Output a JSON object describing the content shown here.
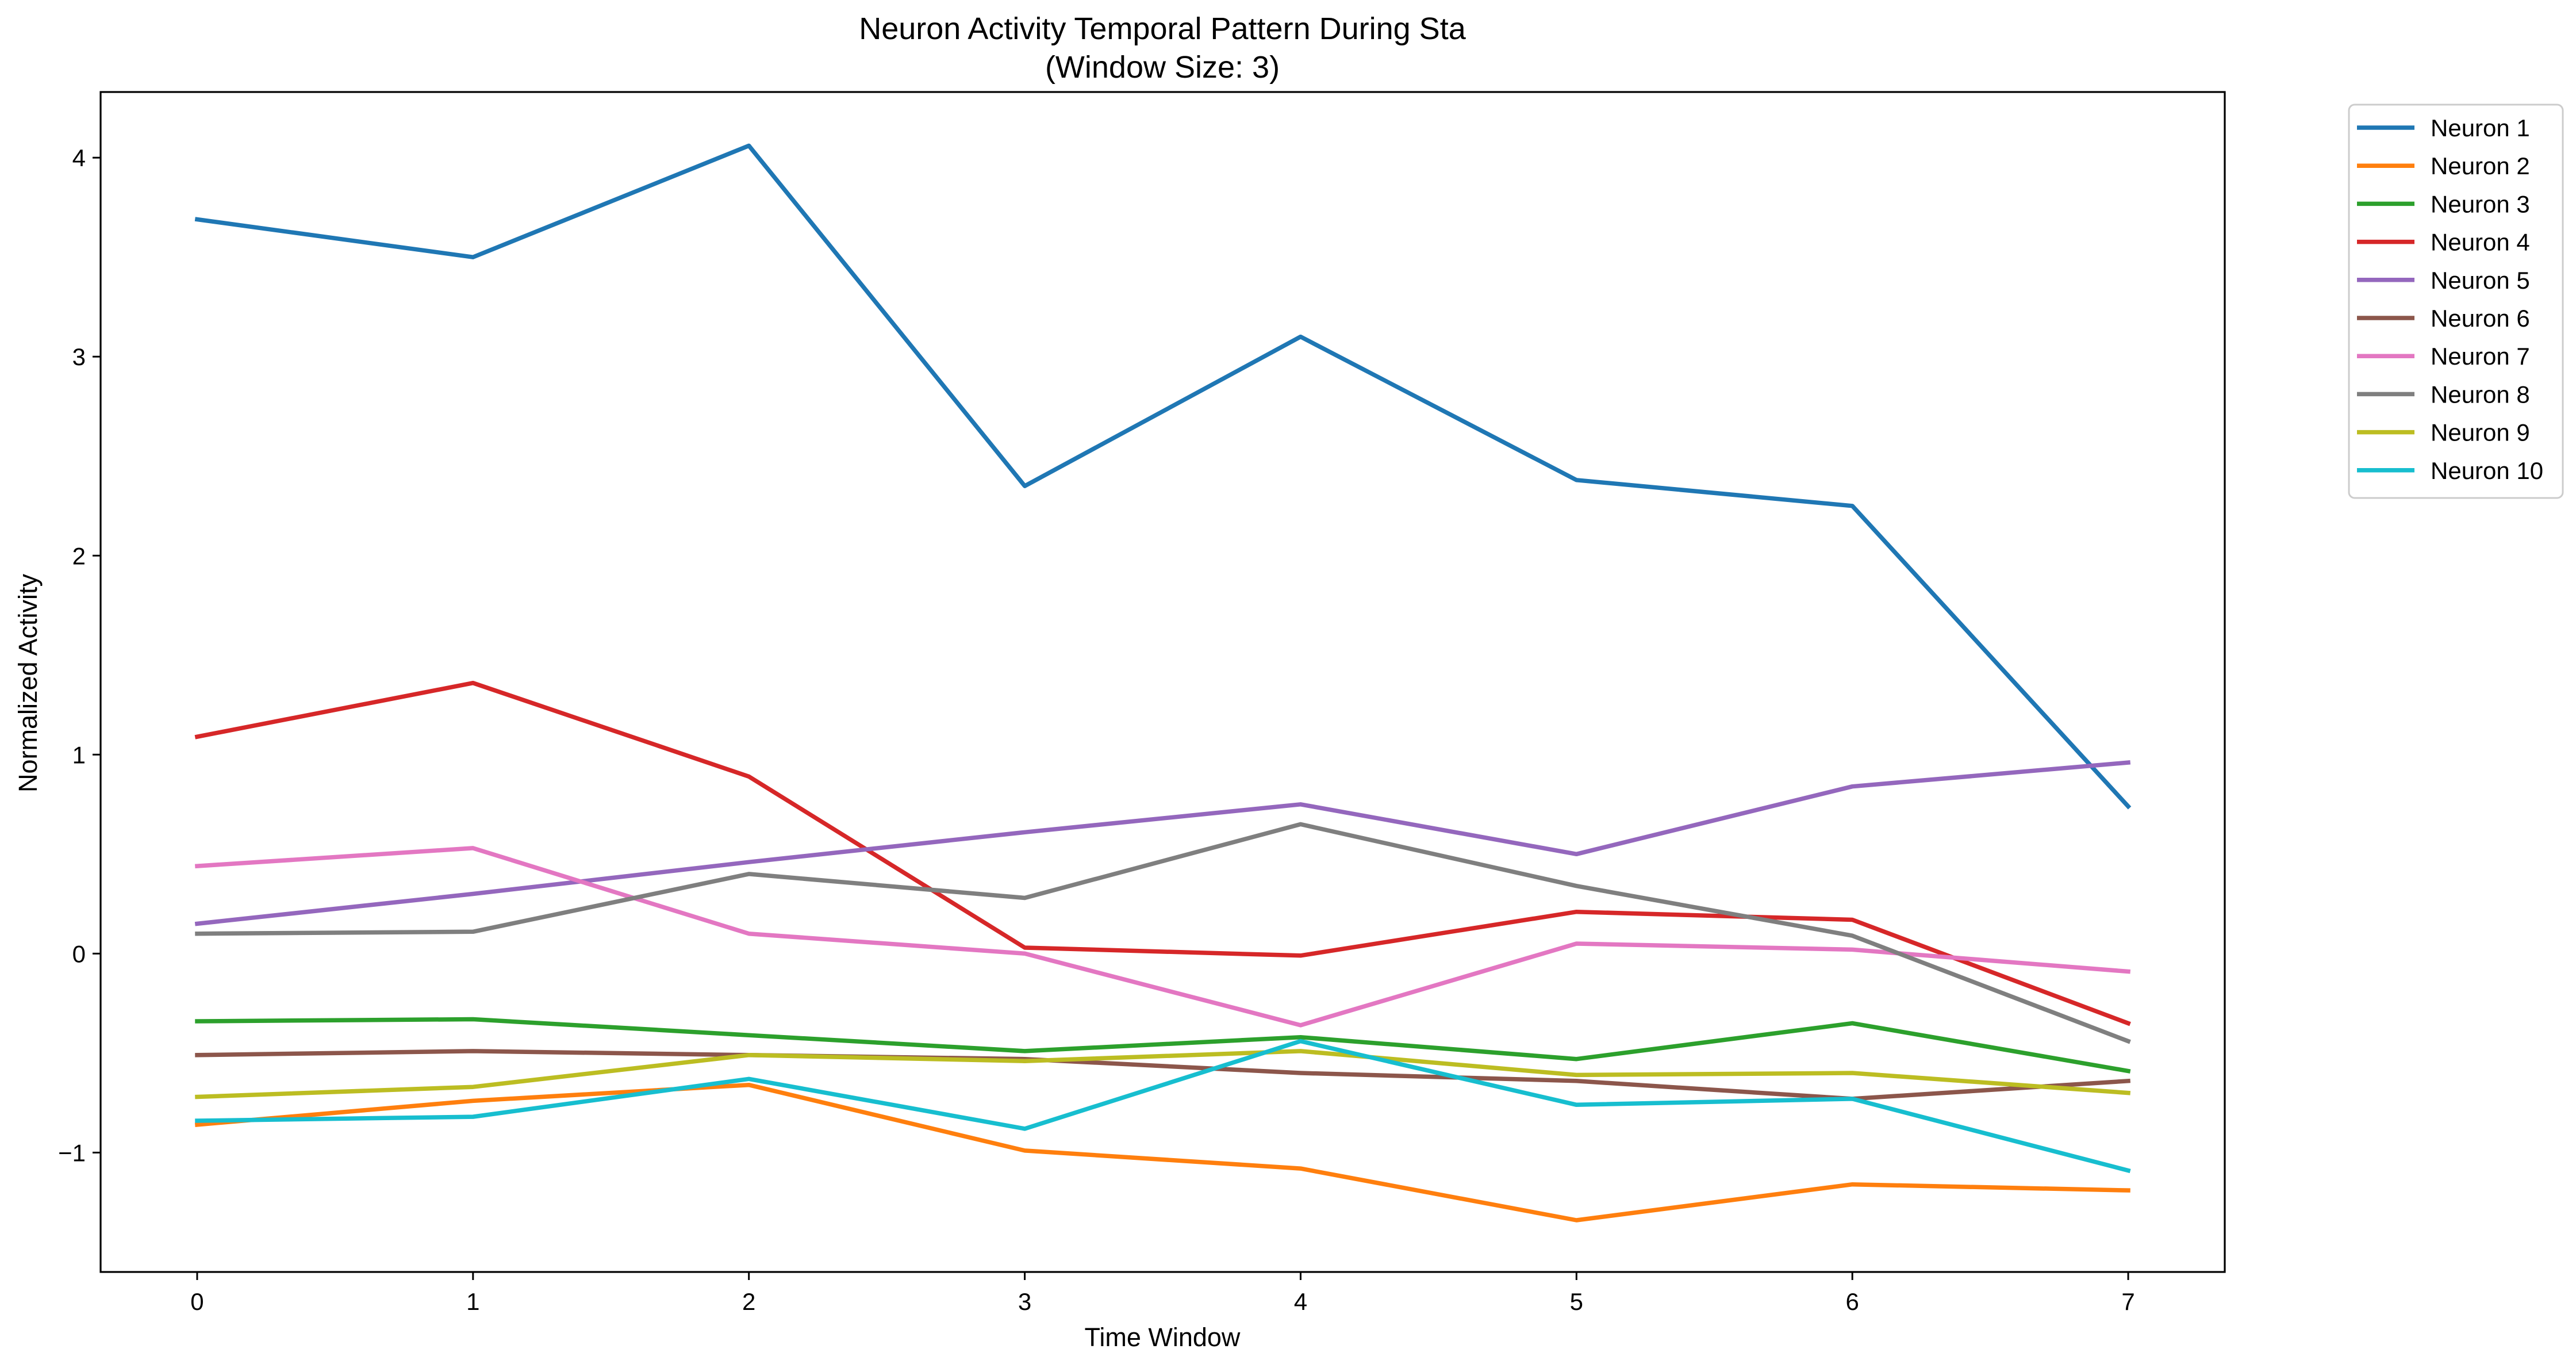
{
  "chart_data": {
    "type": "line",
    "title": "Neuron Activity Temporal Pattern During Sta",
    "subtitle": "(Window Size: 3)",
    "xlabel": "Time Window",
    "ylabel": "Normalized Activity",
    "x": [
      0,
      1,
      2,
      3,
      4,
      5,
      6,
      7
    ],
    "xlim": [
      -0.35,
      7.35
    ],
    "ylim": [
      -1.6,
      4.33
    ],
    "xticks": [
      0,
      1,
      2,
      3,
      4,
      5,
      6,
      7
    ],
    "yticks": [
      -1,
      0,
      1,
      2,
      3,
      4
    ],
    "ytick_labels": [
      "−1",
      "0",
      "1",
      "2",
      "3",
      "4"
    ],
    "grid": false,
    "legend_position": "outside upper right",
    "series": [
      {
        "name": "Neuron 1",
        "color": "#1f77b4",
        "values": [
          3.69,
          3.5,
          4.06,
          2.35,
          3.1,
          2.38,
          2.25,
          0.74
        ]
      },
      {
        "name": "Neuron 2",
        "color": "#ff7f0e",
        "values": [
          -0.86,
          -0.74,
          -0.66,
          -0.99,
          -1.08,
          -1.34,
          -1.16,
          -1.19
        ]
      },
      {
        "name": "Neuron 3",
        "color": "#2ca02c",
        "values": [
          -0.34,
          -0.33,
          -0.41,
          -0.49,
          -0.42,
          -0.53,
          -0.35,
          -0.59
        ]
      },
      {
        "name": "Neuron 4",
        "color": "#d62728",
        "values": [
          1.09,
          1.36,
          0.89,
          0.03,
          -0.01,
          0.21,
          0.17,
          -0.35
        ]
      },
      {
        "name": "Neuron 5",
        "color": "#9467bd",
        "values": [
          0.15,
          0.3,
          0.46,
          0.61,
          0.75,
          0.5,
          0.84,
          0.96
        ]
      },
      {
        "name": "Neuron 6",
        "color": "#8c564b",
        "values": [
          -0.51,
          -0.49,
          -0.51,
          -0.53,
          -0.6,
          -0.64,
          -0.73,
          -0.64
        ]
      },
      {
        "name": "Neuron 7",
        "color": "#e377c2",
        "values": [
          0.44,
          0.53,
          0.1,
          0.0,
          -0.36,
          0.05,
          0.02,
          -0.09
        ]
      },
      {
        "name": "Neuron 8",
        "color": "#7f7f7f",
        "values": [
          0.1,
          0.11,
          0.4,
          0.28,
          0.65,
          0.34,
          0.09,
          -0.44
        ]
      },
      {
        "name": "Neuron 9",
        "color": "#bcbd22",
        "values": [
          -0.72,
          -0.67,
          -0.51,
          -0.54,
          -0.49,
          -0.61,
          -0.6,
          -0.7
        ]
      },
      {
        "name": "Neuron 10",
        "color": "#17becf",
        "values": [
          -0.84,
          -0.82,
          -0.63,
          -0.88,
          -0.44,
          -0.76,
          -0.73,
          -1.09
        ]
      }
    ]
  }
}
